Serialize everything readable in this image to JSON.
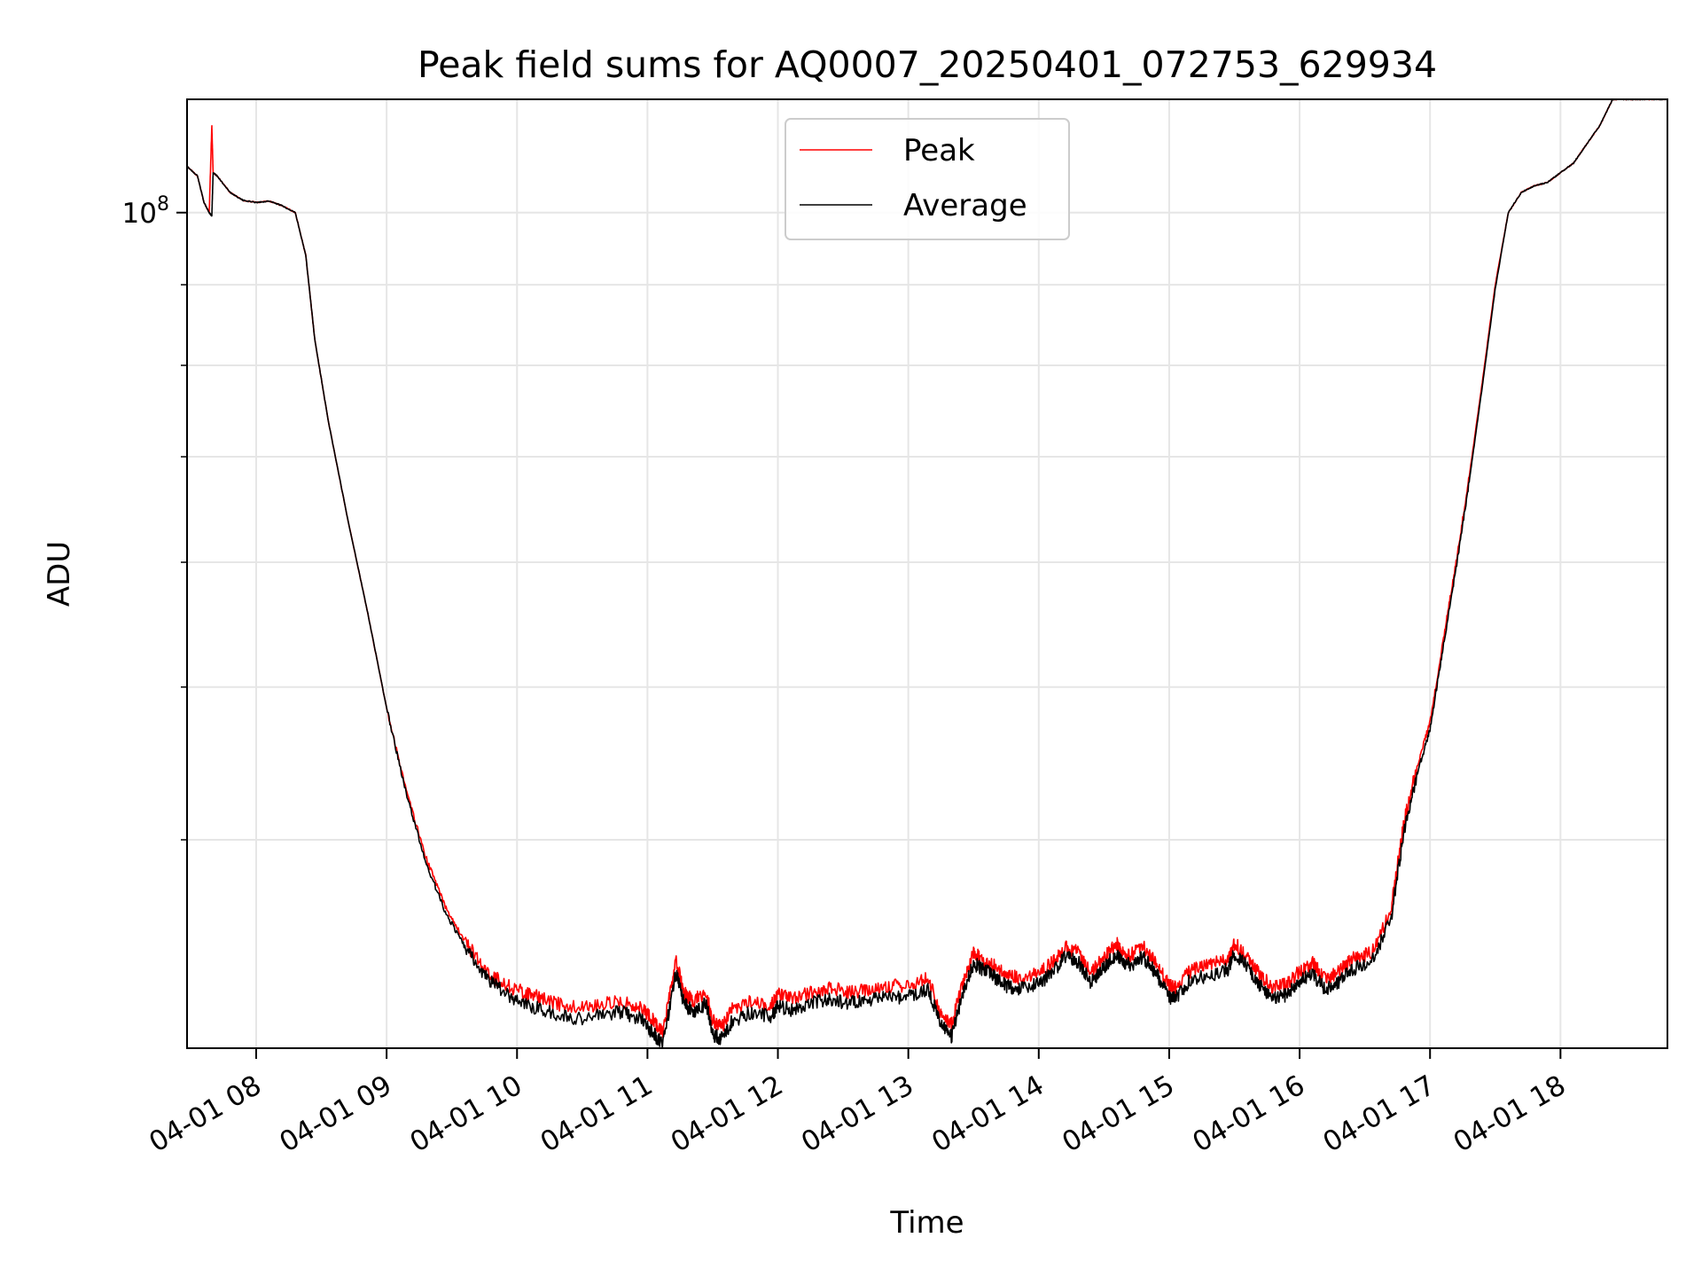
{
  "chart_data": {
    "type": "line",
    "title": "Peak field sums for AQ0007_20250401_072753_629934",
    "xlabel": "Time",
    "ylabel": "ADU",
    "yscale": "log",
    "xlim_hours": [
      7.47,
      18.82
    ],
    "ylim": [
      29500000,
      118000000
    ],
    "major_y_tick": {
      "value": 100000000,
      "label_base": "10",
      "label_exp": "8"
    },
    "minor_y_ticks": [
      40000000,
      50000000,
      60000000,
      70000000,
      80000000,
      90000000
    ],
    "grid": true,
    "legend_position": "upper center",
    "x_ticks": [
      {
        "hour": 8,
        "label": "04-01 08"
      },
      {
        "hour": 9,
        "label": "04-01 09"
      },
      {
        "hour": 10,
        "label": "04-01 10"
      },
      {
        "hour": 11,
        "label": "04-01 11"
      },
      {
        "hour": 12,
        "label": "04-01 12"
      },
      {
        "hour": 13,
        "label": "04-01 13"
      },
      {
        "hour": 14,
        "label": "04-01 14"
      },
      {
        "hour": 15,
        "label": "04-01 15"
      },
      {
        "hour": 16,
        "label": "04-01 16"
      },
      {
        "hour": 17,
        "label": "04-01 17"
      },
      {
        "hour": 18,
        "label": "04-01 18"
      }
    ],
    "x_hours": [
      7.47,
      7.55,
      7.6,
      7.64,
      7.66,
      7.67,
      7.7,
      7.8,
      7.9,
      8.0,
      8.1,
      8.2,
      8.3,
      8.38,
      8.45,
      8.55,
      8.7,
      8.85,
      9.0,
      9.15,
      9.3,
      9.45,
      9.6,
      9.75,
      9.9,
      10.05,
      10.2,
      10.4,
      10.6,
      10.8,
      10.95,
      11.05,
      11.12,
      11.22,
      11.28,
      11.35,
      11.45,
      11.5,
      11.57,
      11.65,
      11.8,
      11.95,
      12.0,
      12.1,
      12.25,
      12.4,
      12.55,
      12.7,
      12.85,
      13.0,
      13.15,
      13.25,
      13.33,
      13.42,
      13.5,
      13.55,
      13.65,
      13.75,
      13.85,
      14.0,
      14.1,
      14.2,
      14.3,
      14.4,
      14.5,
      14.6,
      14.63,
      14.7,
      14.8,
      14.9,
      15.0,
      15.05,
      15.15,
      15.3,
      15.45,
      15.5,
      15.6,
      15.7,
      15.8,
      15.9,
      16.0,
      16.1,
      16.2,
      16.3,
      16.4,
      16.55,
      16.7,
      16.8,
      16.9,
      17.0,
      17.1,
      17.2,
      17.3,
      17.4,
      17.5,
      17.6,
      17.7,
      17.8,
      17.9,
      18.0,
      18.1,
      18.2,
      18.3,
      18.4,
      18.5,
      18.6,
      18.7,
      18.82
    ],
    "series": [
      {
        "name": "Peak",
        "color": "#ff0000",
        "values": [
          107000000,
          105500000,
          101500000,
          100000000,
          113500000,
          106000000,
          105500000,
          103000000,
          101800000,
          101500000,
          101700000,
          101000000,
          100000000,
          94000000,
          83000000,
          74000000,
          64000000,
          56000000,
          48500000,
          43000000,
          39000000,
          36300000,
          34500000,
          33100000,
          32400000,
          32000000,
          31700000,
          31300000,
          31400000,
          31600000,
          31300000,
          30700000,
          30200000,
          33500000,
          32000000,
          31600000,
          32000000,
          30700000,
          30400000,
          31200000,
          31600000,
          31400000,
          31900000,
          31700000,
          32000000,
          32200000,
          32000000,
          32100000,
          32300000,
          32300000,
          32700000,
          31000000,
          30500000,
          32500000,
          33900000,
          33700000,
          33300000,
          32800000,
          32700000,
          32900000,
          33400000,
          34200000,
          34000000,
          33000000,
          33700000,
          34400000,
          34000000,
          33800000,
          34200000,
          33400000,
          32300000,
          32200000,
          33000000,
          33300000,
          33600000,
          34400000,
          33700000,
          32800000,
          32200000,
          32400000,
          33000000,
          33400000,
          32600000,
          33000000,
          33600000,
          33900000,
          36100000,
          41000000,
          44500000,
          47500000,
          53500000,
          60000000,
          68000000,
          78000000,
          90000000,
          100000000,
          103000000,
          104000000,
          104500000,
          106000000,
          107500000,
          110500000,
          113500000,
          118000000,
          118000000,
          118000000,
          118000000,
          118000000
        ]
      },
      {
        "name": "Average",
        "color": "#000000",
        "values": [
          107000000,
          105500000,
          101500000,
          100000000,
          99500000,
          106000000,
          105500000,
          103000000,
          101800000,
          101500000,
          101700000,
          101000000,
          100000000,
          94000000,
          83000000,
          74000000,
          64000000,
          56000000,
          48500000,
          42800000,
          38700000,
          36000000,
          34200000,
          32800000,
          32000000,
          31500000,
          31200000,
          30800000,
          30900000,
          31100000,
          30800000,
          30100000,
          29700000,
          33000000,
          31500000,
          31100000,
          31500000,
          30100000,
          29900000,
          30700000,
          31100000,
          30900000,
          31400000,
          31200000,
          31500000,
          31700000,
          31500000,
          31600000,
          31800000,
          31800000,
          32200000,
          30500000,
          30000000,
          32000000,
          33400000,
          33200000,
          32800000,
          32300000,
          32200000,
          32400000,
          32900000,
          33700000,
          33500000,
          32500000,
          33200000,
          33900000,
          33500000,
          33300000,
          33700000,
          32900000,
          31800000,
          31700000,
          32500000,
          32800000,
          33100000,
          33900000,
          33200000,
          32300000,
          31700000,
          31900000,
          32500000,
          32900000,
          32100000,
          32500000,
          33100000,
          33400000,
          35600000,
          40500000,
          44000000,
          47000000,
          53000000,
          59500000,
          67500000,
          77500000,
          89500000,
          100000000,
          103000000,
          104000000,
          104500000,
          106000000,
          107500000,
          110500000,
          113500000,
          118000000,
          118000000,
          118000000,
          118000000,
          118000000
        ]
      }
    ]
  }
}
